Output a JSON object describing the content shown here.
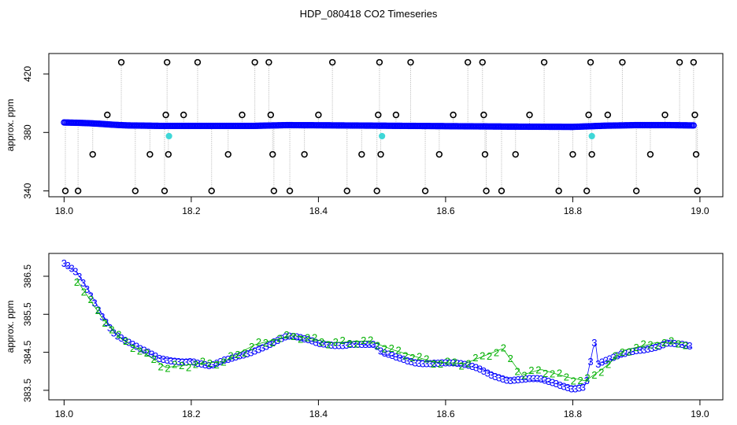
{
  "figure": {
    "title": "HDP_080418  CO2 Timeseries"
  },
  "colors": {
    "background": "#ffffff",
    "axis": "#000000",
    "spike_line": "#b0b0b0",
    "outlier_marker": "#000000",
    "series_blue": "#0000ff",
    "series_cyan": "#3fd7d7",
    "series_green": "#00b000"
  },
  "chart_data": [
    {
      "type": "scatter",
      "title": "",
      "xlabel": "",
      "ylabel": "approx. ppm",
      "xlim": [
        18.0,
        19.0
      ],
      "ylim": [
        336,
        434
      ],
      "xticks": [
        18.0,
        18.2,
        18.4,
        18.6,
        18.8,
        19.0
      ],
      "xtick_labels": [
        "18.0",
        "18.2",
        "18.4",
        "18.6",
        "18.8",
        "19.0"
      ],
      "yticks": [
        340,
        380,
        420
      ],
      "ytick_labels": [
        "340",
        "380",
        "420"
      ],
      "grid": false,
      "legend": "none",
      "baseline": {
        "x": [
          18.0,
          18.02,
          18.04,
          18.06,
          18.08,
          18.1,
          18.15,
          18.2,
          18.3,
          18.35,
          18.4,
          18.5,
          18.6,
          18.7,
          18.8,
          18.85,
          18.9,
          18.95,
          18.99
        ],
        "y": [
          386.8,
          386.6,
          386.3,
          385.8,
          385.2,
          384.8,
          384.5,
          384.5,
          384.5,
          385.0,
          384.9,
          384.6,
          384.3,
          384.0,
          383.8,
          384.6,
          385.0,
          385.0,
          384.8
        ]
      },
      "outliers": {
        "x": [
          18.002,
          18.022,
          18.045,
          18.068,
          18.09,
          18.112,
          18.135,
          18.158,
          18.16,
          18.162,
          18.164,
          18.188,
          18.21,
          18.232,
          18.258,
          18.28,
          18.3,
          18.322,
          18.325,
          18.328,
          18.33,
          18.355,
          18.378,
          18.4,
          18.422,
          18.445,
          18.468,
          18.492,
          18.494,
          18.496,
          18.498,
          18.522,
          18.545,
          18.568,
          18.59,
          18.612,
          18.635,
          18.658,
          18.66,
          18.662,
          18.664,
          18.688,
          18.71,
          18.732,
          18.755,
          18.778,
          18.8,
          18.822,
          18.825,
          18.828,
          18.83,
          18.855,
          18.878,
          18.9,
          18.922,
          18.945,
          18.968,
          18.99,
          18.992,
          18.994,
          18.996
        ],
        "y": [
          340,
          340,
          365,
          392,
          428,
          340,
          365,
          340,
          392,
          428,
          365,
          392,
          428,
          340,
          365,
          392,
          428,
          428,
          392,
          365,
          340,
          340,
          365,
          392,
          428,
          340,
          365,
          340,
          392,
          428,
          365,
          392,
          428,
          340,
          365,
          392,
          428,
          428,
          392,
          365,
          340,
          340,
          365,
          392,
          428,
          340,
          365,
          340,
          392,
          428,
          365,
          392,
          428,
          340,
          365,
          392,
          428,
          428,
          392,
          365,
          340
        ]
      },
      "flag_points": {
        "x": [
          18.165,
          18.5,
          18.83
        ],
        "y": [
          377.5,
          377.5,
          377.5
        ]
      }
    },
    {
      "type": "scatter",
      "title": "",
      "xlabel": "",
      "ylabel": "approx. ppm",
      "xlim": [
        18.0,
        19.0
      ],
      "ylim": [
        383.25,
        387.1
      ],
      "xticks": [
        18.0,
        18.2,
        18.4,
        18.6,
        18.8,
        19.0
      ],
      "xtick_labels": [
        "18.0",
        "18.2",
        "18.4",
        "18.6",
        "18.8",
        "19.0"
      ],
      "yticks": [
        383.5,
        384.5,
        385.5,
        386.5
      ],
      "ytick_labels": [
        "383.5",
        "384.5",
        "385.5",
        "386.5"
      ],
      "grid": false,
      "legend": "none",
      "series": [
        {
          "marker": "3",
          "x": [
            18.0,
            18.02,
            18.04,
            18.06,
            18.08,
            18.1,
            18.12,
            18.15,
            18.2,
            18.23,
            18.26,
            18.3,
            18.33,
            18.35,
            18.4,
            18.45,
            18.49,
            18.5,
            18.55,
            18.6,
            18.65,
            18.7,
            18.75,
            18.8,
            18.82,
            18.835,
            18.84,
            18.86,
            18.9,
            18.95,
            18.99
          ],
          "y": [
            386.8,
            386.6,
            386.1,
            385.5,
            385.0,
            384.75,
            384.55,
            384.35,
            384.3,
            384.1,
            384.3,
            384.6,
            384.8,
            384.9,
            384.75,
            384.75,
            384.65,
            384.45,
            384.3,
            384.2,
            384.1,
            383.8,
            383.75,
            383.6,
            383.65,
            384.85,
            384.2,
            384.3,
            384.55,
            384.8,
            384.6
          ]
        },
        {
          "marker": "2",
          "x": [
            18.02,
            18.04,
            18.06,
            18.09,
            18.12,
            18.16,
            18.21,
            18.25,
            18.3,
            18.36,
            18.42,
            18.48,
            18.52,
            18.58,
            18.63,
            18.69,
            18.72,
            18.75,
            18.79,
            18.82,
            18.85,
            18.88,
            18.93,
            18.98
          ],
          "y": [
            386.4,
            385.9,
            385.4,
            384.85,
            384.55,
            384.1,
            384.2,
            384.25,
            384.7,
            384.95,
            384.75,
            384.8,
            384.55,
            384.25,
            384.2,
            384.6,
            383.9,
            384.05,
            383.85,
            383.75,
            384.1,
            384.55,
            384.75,
            384.75
          ]
        }
      ]
    }
  ]
}
